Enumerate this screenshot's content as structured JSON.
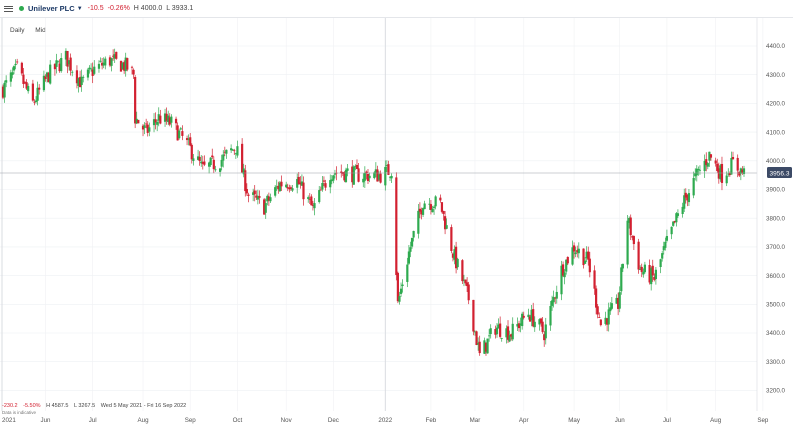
{
  "header": {
    "instrument": "Unilever PLC",
    "change": "-10.5",
    "change_pct": "-0.26%",
    "high": "H 4000.0",
    "low": "L 3933.1",
    "colors": {
      "up": "#2eaa4f",
      "down": "#d22030"
    }
  },
  "controls": {
    "interval": "Daily",
    "price_type": "Mid"
  },
  "footer": {
    "change": "-230.2",
    "change_pct": "-5.50%",
    "high": "H 4587.5",
    "low": "L 3267.5",
    "range": "Wed 5 May 2021 - Fri 16 Sep 2022",
    "note": "Data is indicative"
  },
  "chart_data": {
    "type": "candlestick",
    "y_ticks": [
      "4400.0",
      "4300.0",
      "4200.0",
      "4100.0",
      "4000.0",
      "3900.0",
      "3800.0",
      "3700.0",
      "3600.0",
      "3500.0",
      "3400.0",
      "3300.0",
      "3200.0"
    ],
    "ylim": [
      3150,
      4450
    ],
    "x_ticks": [
      "2021",
      "Jun",
      "Jul",
      "Aug",
      "Sep",
      "Oct",
      "Nov",
      "Dec",
      "2022",
      "Feb",
      "Mar",
      "Apr",
      "May",
      "Jun",
      "Jul",
      "Aug",
      "Sep"
    ],
    "current_price": "3956.3",
    "grid": true,
    "close_path": [
      [
        "2021-05-05",
        4250
      ],
      [
        "2021-05-14",
        4320
      ],
      [
        "2021-05-24",
        4200
      ],
      [
        "2021-06-03",
        4300
      ],
      [
        "2021-06-14",
        4360
      ],
      [
        "2021-06-24",
        4270
      ],
      [
        "2021-07-02",
        4320
      ],
      [
        "2021-07-12",
        4350
      ],
      [
        "2021-07-22",
        4330
      ],
      [
        "2021-07-27",
        4300
      ],
      [
        "2021-07-28",
        4150
      ],
      [
        "2021-08-04",
        4100
      ],
      [
        "2021-08-12",
        4150
      ],
      [
        "2021-08-20",
        4130
      ],
      [
        "2021-08-31",
        4050
      ],
      [
        "2021-09-09",
        3970
      ],
      [
        "2021-09-20",
        4000
      ],
      [
        "2021-09-30",
        4050
      ],
      [
        "2021-10-08",
        3880
      ],
      [
        "2021-10-18",
        3840
      ],
      [
        "2021-10-28",
        3920
      ],
      [
        "2021-11-08",
        3930
      ],
      [
        "2021-11-18",
        3830
      ],
      [
        "2021-11-29",
        3960
      ],
      [
        "2021-12-08",
        3960
      ],
      [
        "2021-12-17",
        3950
      ],
      [
        "2021-12-31",
        3950
      ],
      [
        "2022-01-07",
        3970
      ],
      [
        "2022-01-11",
        3500
      ],
      [
        "2022-01-18",
        3680
      ],
      [
        "2022-01-27",
        3860
      ],
      [
        "2022-02-07",
        3850
      ],
      [
        "2022-02-15",
        3680
      ],
      [
        "2022-02-25",
        3520
      ],
      [
        "2022-03-04",
        3320
      ],
      [
        "2022-03-14",
        3420
      ],
      [
        "2022-03-24",
        3400
      ],
      [
        "2022-04-04",
        3470
      ],
      [
        "2022-04-14",
        3400
      ],
      [
        "2022-04-25",
        3620
      ],
      [
        "2022-05-03",
        3700
      ],
      [
        "2022-05-12",
        3650
      ],
      [
        "2022-05-20",
        3430
      ],
      [
        "2022-05-31",
        3500
      ],
      [
        "2022-06-06",
        3800
      ],
      [
        "2022-06-14",
        3620
      ],
      [
        "2022-06-23",
        3590
      ],
      [
        "2022-06-30",
        3700
      ],
      [
        "2022-07-11",
        3850
      ],
      [
        "2022-07-20",
        3950
      ],
      [
        "2022-07-28",
        4020
      ],
      [
        "2022-08-05",
        3950
      ],
      [
        "2022-08-12",
        3990
      ],
      [
        "2022-08-19",
        3956
      ]
    ]
  }
}
